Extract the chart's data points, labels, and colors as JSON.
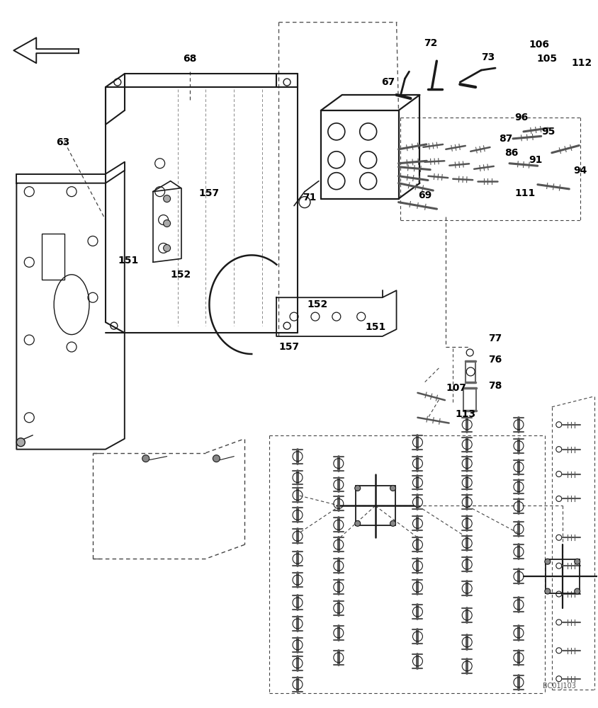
{
  "bg_color": "#ffffff",
  "line_color": "#1a1a1a",
  "figsize": [
    8.44,
    10.0
  ],
  "dpi": 100,
  "watermark": "BC01J103"
}
